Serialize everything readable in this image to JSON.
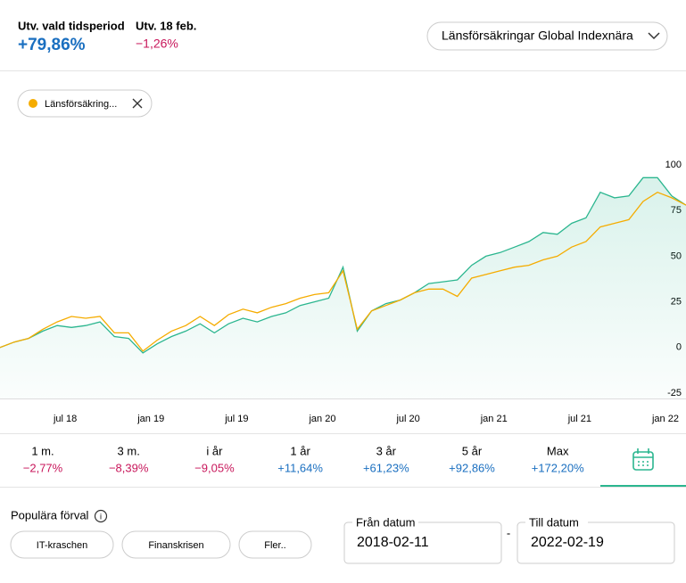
{
  "header": {
    "period_label": "Utv. vald tidsperiod",
    "period_value": "+79,86%",
    "day_label": "Utv. 18 feb.",
    "day_value": "−1,26%",
    "fund_select": "Länsförsäkringar Global Indexnära"
  },
  "chart_data": {
    "type": "line",
    "categories": [
      null,
      null,
      null,
      null,
      null,
      "jul 18",
      null,
      null,
      null,
      null,
      null,
      "jan 19",
      null,
      null,
      null,
      null,
      null,
      "jul 19",
      null,
      null,
      null,
      null,
      null,
      "jan 20",
      null,
      null,
      null,
      null,
      null,
      "jul 20",
      null,
      null,
      null,
      null,
      null,
      "jan 21",
      null,
      null,
      null,
      null,
      null,
      "jul 21",
      null,
      null,
      null,
      null,
      null,
      "jan 22",
      null
    ],
    "series": [
      {
        "color": "#2bb68f",
        "values": [
          0,
          3,
          5,
          9,
          12,
          11,
          12,
          14,
          6,
          5,
          -3,
          2,
          6,
          9,
          13,
          8,
          13,
          16,
          14,
          17,
          19,
          23,
          25,
          27,
          44,
          9,
          20,
          24,
          26,
          30,
          35,
          36,
          37,
          45,
          50,
          52,
          55,
          58,
          63,
          62,
          68,
          71,
          85,
          82,
          83,
          93,
          93,
          83,
          78
        ]
      },
      {
        "name": "Länsförsäkring...",
        "color": "#f5ac00",
        "values": [
          0,
          3,
          5,
          10,
          14,
          17,
          16,
          17,
          8,
          8,
          -2,
          4,
          9,
          12,
          17,
          12,
          18,
          21,
          19,
          22,
          24,
          27,
          29,
          30,
          42,
          10,
          20,
          23,
          26,
          30,
          32,
          32,
          28,
          38,
          40,
          42,
          44,
          45,
          48,
          50,
          55,
          58,
          66,
          68,
          70,
          80,
          85,
          82,
          78
        ]
      }
    ],
    "ylim": [
      -25,
      100
    ],
    "yticks": [
      100,
      75,
      50,
      25,
      0,
      -25
    ],
    "grid": false
  },
  "periods": [
    [
      "1 m.",
      "−2,77%"
    ],
    [
      "3 m.",
      "−8,39%"
    ],
    [
      "i år",
      "−9,05%"
    ],
    [
      "1 år",
      "+11,64%"
    ],
    [
      "3 år",
      "+61,23%"
    ],
    [
      "5 år",
      "+92,86%"
    ],
    [
      "Max",
      "+172,20%"
    ]
  ],
  "presets": {
    "title": "Populära förval",
    "buttons": [
      "IT-kraschen",
      "Finanskrisen",
      "Fler.."
    ]
  },
  "dates": {
    "from_label": "Från datum",
    "from": "2018-02-11",
    "separator": "-",
    "to_label": "Till datum",
    "to": "2022-02-19"
  }
}
